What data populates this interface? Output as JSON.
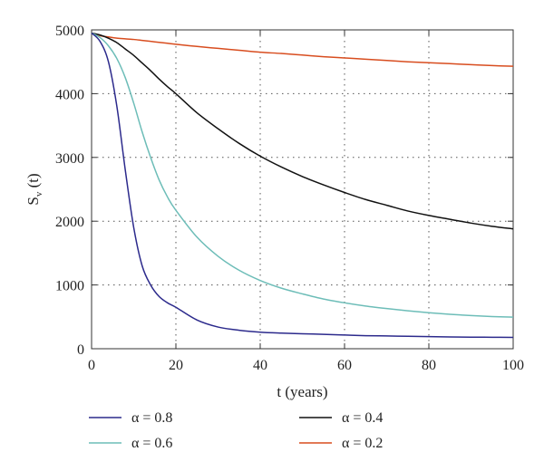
{
  "chart_data": {
    "type": "line",
    "xlabel": "t (years)",
    "ylabel": "S",
    "ylabel_sub": "v",
    "ylabel_suffix": " (t)",
    "xlim": [
      0,
      100
    ],
    "ylim": [
      0,
      5000
    ],
    "xticks": [
      0,
      20,
      40,
      60,
      80,
      100
    ],
    "yticks": [
      0,
      1000,
      2000,
      3000,
      4000,
      5000
    ],
    "grid": "dotted",
    "legend_position": "bottom",
    "x": [
      0,
      2,
      4,
      6,
      8,
      10,
      12,
      14,
      16,
      18,
      20,
      25,
      30,
      35,
      40,
      45,
      50,
      55,
      60,
      65,
      70,
      75,
      80,
      85,
      90,
      95,
      100
    ],
    "series": [
      {
        "name": "α = 0.8",
        "color": "#2c2a8c",
        "values": [
          4950,
          4820,
          4500,
          3800,
          2800,
          1900,
          1300,
          1000,
          820,
          720,
          650,
          450,
          340,
          290,
          260,
          245,
          235,
          225,
          215,
          205,
          200,
          195,
          190,
          185,
          182,
          180,
          178
        ]
      },
      {
        "name": "α = 0.6",
        "color": "#6dbdb8",
        "values": [
          4950,
          4880,
          4750,
          4550,
          4250,
          3850,
          3400,
          3000,
          2650,
          2380,
          2170,
          1750,
          1450,
          1230,
          1070,
          950,
          860,
          780,
          720,
          670,
          630,
          595,
          565,
          540,
          520,
          505,
          495
        ]
      },
      {
        "name": "α = 0.4",
        "color": "#111111",
        "values": [
          4950,
          4920,
          4870,
          4800,
          4700,
          4600,
          4480,
          4360,
          4230,
          4110,
          4000,
          3700,
          3450,
          3220,
          3020,
          2850,
          2700,
          2570,
          2450,
          2340,
          2250,
          2160,
          2090,
          2030,
          1970,
          1920,
          1880
        ]
      },
      {
        "name": "α = 0.2",
        "color": "#d84d1f",
        "values": [
          4950,
          4910,
          4890,
          4870,
          4860,
          4850,
          4835,
          4820,
          4805,
          4790,
          4775,
          4740,
          4710,
          4680,
          4650,
          4630,
          4605,
          4580,
          4560,
          4540,
          4520,
          4500,
          4485,
          4470,
          4455,
          4440,
          4430
        ]
      }
    ]
  }
}
